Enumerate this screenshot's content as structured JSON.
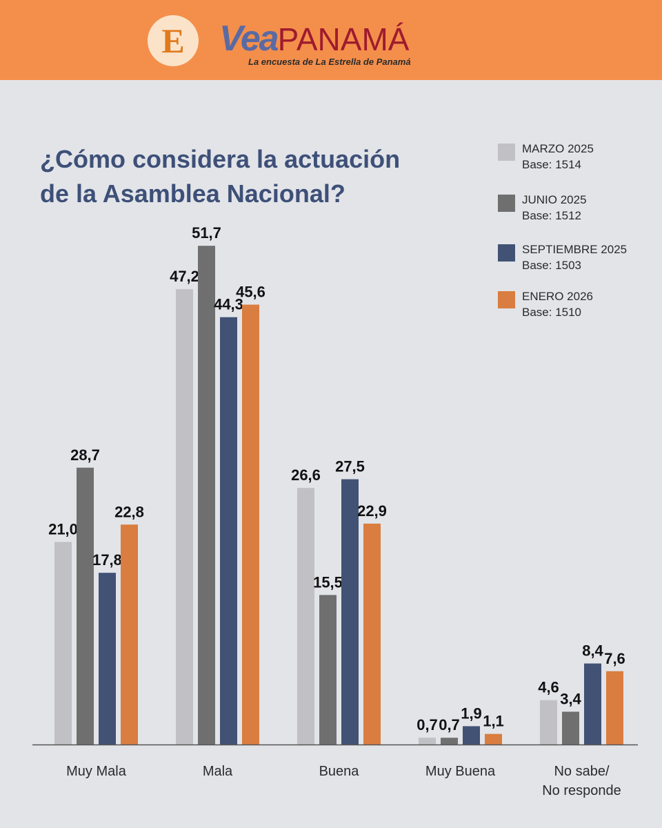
{
  "header": {
    "logo_letter": "E",
    "brand_vea": "Vea",
    "brand_panama": "PANAMÁ",
    "subtitle": "La encuesta de La Estrella de Panamá"
  },
  "colors": {
    "header_bg": "#f48f4b",
    "page_bg": "#e2e4e8",
    "title": "#3e5078"
  },
  "chart_data": {
    "type": "bar",
    "title": [
      "¿Cómo considera la actuación",
      "de la Asamblea Nacional?"
    ],
    "xlabel": "",
    "ylabel": "",
    "ylim": [
      0,
      55
    ],
    "grid": false,
    "legend_position": "top-right",
    "categories": [
      [
        "Muy Mala"
      ],
      [
        "Mala"
      ],
      [
        "Buena"
      ],
      [
        "Muy Buena"
      ],
      [
        "No sabe/",
        "No responde"
      ]
    ],
    "series": [
      {
        "name": "MARZO 2025",
        "base": "Base: 1514",
        "color": "#c1c1c5",
        "values": [
          21.0,
          47.2,
          26.6,
          0.7,
          4.6
        ],
        "labels": [
          "21,0",
          "47,2",
          "26,6",
          "0,7",
          "4,6"
        ]
      },
      {
        "name": "JUNIO 2025",
        "base": "Base: 1512",
        "color": "#6f6f6f",
        "values": [
          28.7,
          51.7,
          15.5,
          0.7,
          3.4
        ],
        "labels": [
          "28,7",
          "51,7",
          "15,5",
          "0,7",
          "3,4"
        ]
      },
      {
        "name": "SEPTIEMBRE 2025",
        "base": "Base: 1503",
        "color": "#425275",
        "values": [
          17.8,
          44.3,
          27.5,
          1.9,
          8.4
        ],
        "labels": [
          "17,8",
          "44,3",
          "27,5",
          "1,9",
          "8,4"
        ]
      },
      {
        "name": "ENERO 2026",
        "base": "Base: 1510",
        "color": "#d97d40",
        "values": [
          22.8,
          45.6,
          22.9,
          1.1,
          7.6
        ],
        "labels": [
          "22,8",
          "45,6",
          "22,9",
          "1,1",
          "7,6"
        ]
      }
    ]
  }
}
